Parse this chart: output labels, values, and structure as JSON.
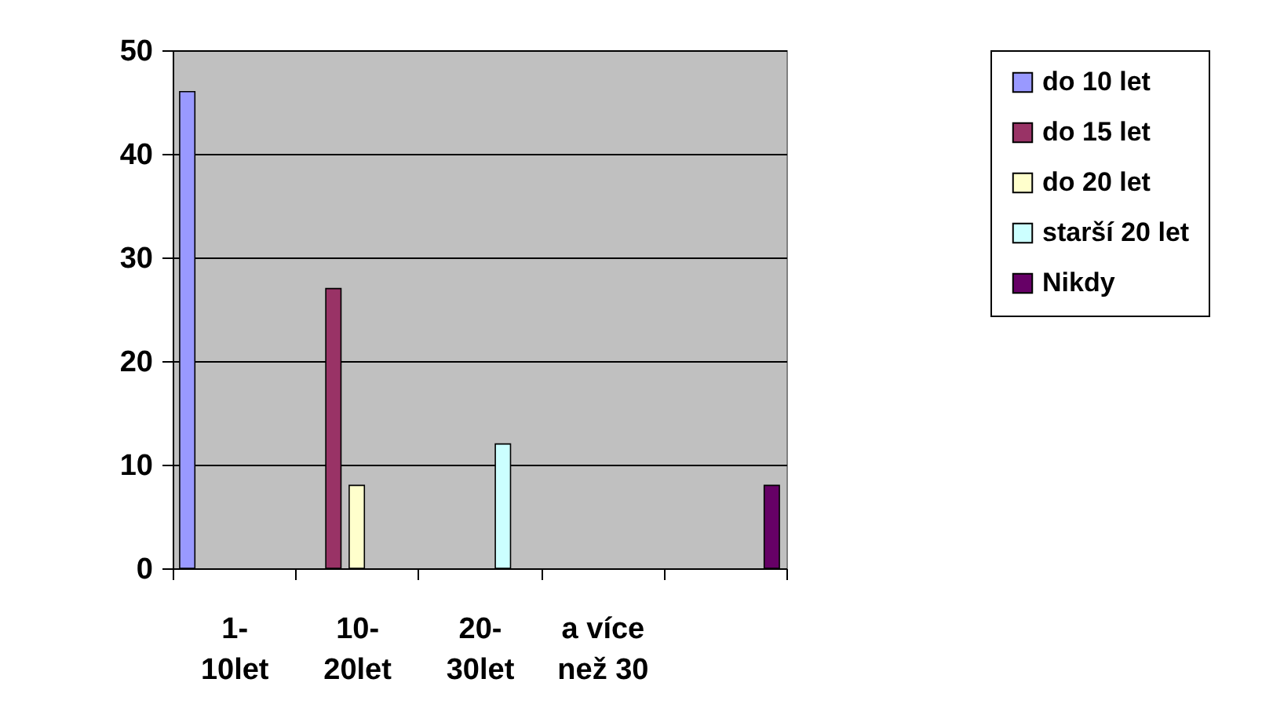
{
  "chart_data": {
    "type": "bar",
    "categories": [
      "1-\n10let",
      "10-\n20let",
      "20-\n30let",
      "a více\nnež 30",
      null
    ],
    "series": [
      {
        "name": "do 10 let",
        "color": "#9999ff",
        "values": [
          46,
          null,
          null,
          null,
          null
        ]
      },
      {
        "name": "do 15 let",
        "color": "#993366",
        "values": [
          null,
          27,
          null,
          null,
          null
        ]
      },
      {
        "name": "do 20 let",
        "color": "#ffffcc",
        "values": [
          null,
          8,
          null,
          null,
          null
        ]
      },
      {
        "name": "starší 20 let",
        "color": "#ccffff",
        "values": [
          null,
          null,
          12,
          null,
          null
        ]
      },
      {
        "name": "Nikdy",
        "color": "#660066",
        "values": [
          null,
          null,
          null,
          null,
          8
        ]
      }
    ],
    "ylim": [
      0,
      50
    ],
    "yticks": [
      0,
      10,
      20,
      30,
      40,
      50
    ],
    "grid": "y",
    "legend": "right"
  }
}
